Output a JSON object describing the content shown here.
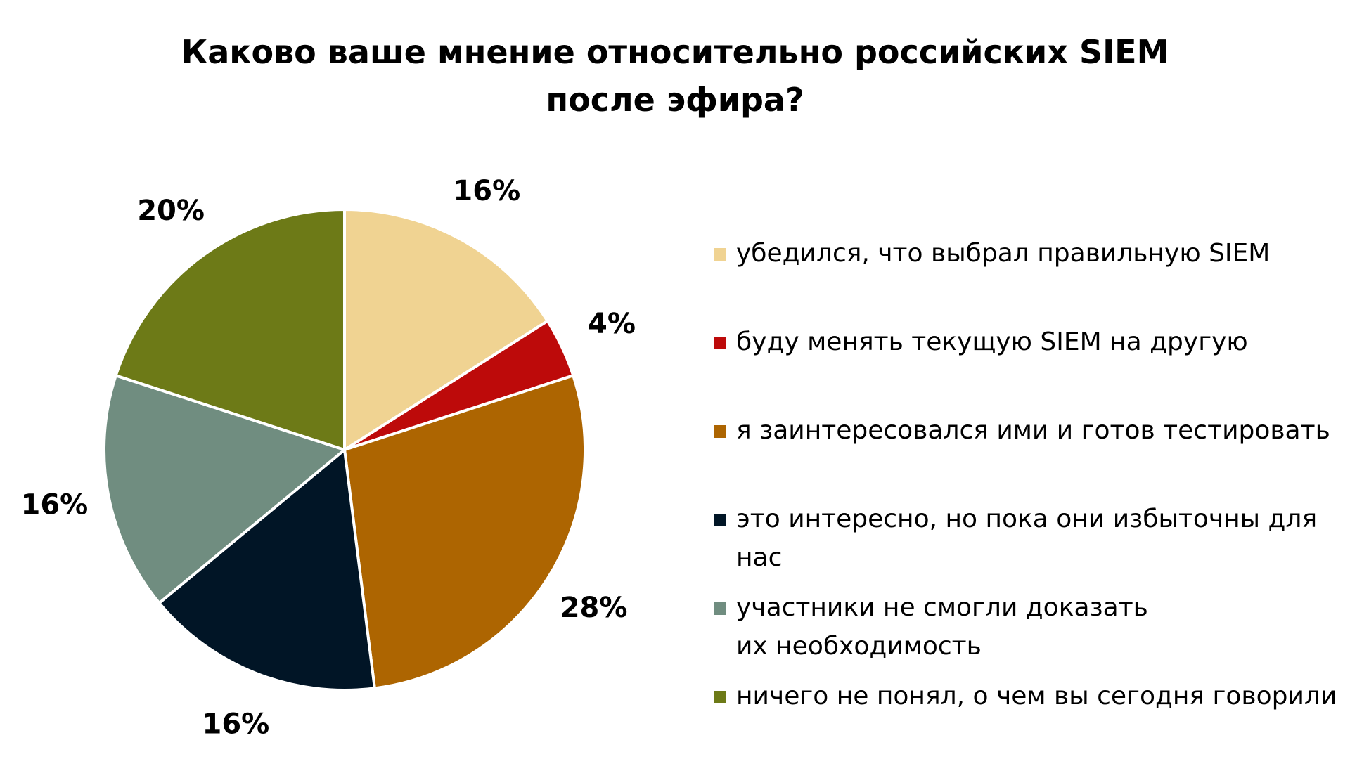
{
  "chart_data": {
    "type": "pie",
    "title_lines": [
      "Каково ваше мнение относительно российских SIEM",
      "после эфира?"
    ],
    "slices": [
      {
        "label": "убедился, что выбрал правильную SIEM",
        "value": 16,
        "value_label": "16%",
        "color": "#F0D392"
      },
      {
        "label": "буду менять текущую SIEM на другую",
        "value": 4,
        "value_label": "4%",
        "color": "#BD0A0A"
      },
      {
        "label": "я заинтересовался ими и готов тестировать",
        "value": 28,
        "value_label": "28%",
        "color": "#AD6501"
      },
      {
        "label": "это интересно, но пока они избыточны для нас",
        "value": 16,
        "value_label": "16%",
        "color": "#011526"
      },
      {
        "label": "участники не смогли доказать\nих необходимость",
        "value": 16,
        "value_label": "16%",
        "color": "#708D80"
      },
      {
        "label": "ничего не понял, о чем вы сегодня говорили",
        "value": 20,
        "value_label": "20%",
        "color": "#6D7A17"
      }
    ],
    "start_angle": "12 o'clock",
    "direction": "clockwise",
    "legend_position": "right"
  }
}
